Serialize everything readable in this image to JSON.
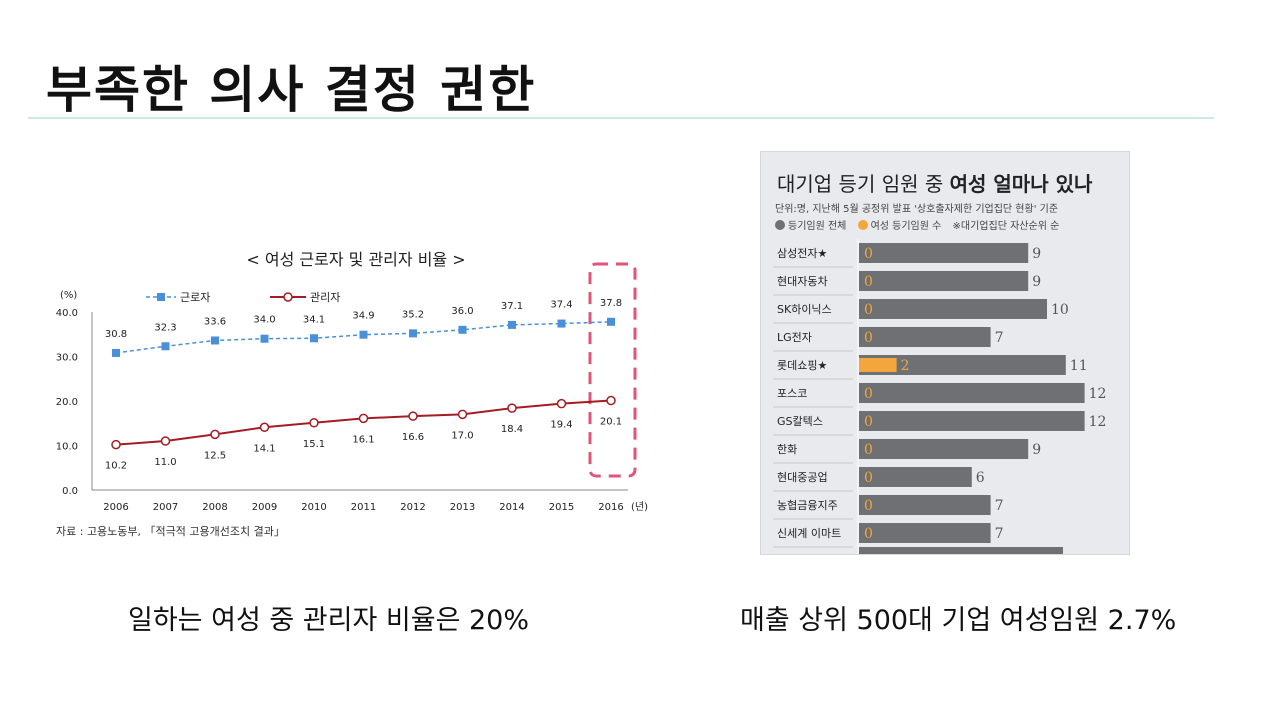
{
  "slide": {
    "title": "부족한 의사 결정 권한",
    "caption_left": "일하는 여성 중 관리자 비율은 20%",
    "caption_right": "매출 상위 500대 기업 여성임원 2.7%"
  },
  "chart_data": [
    {
      "type": "line",
      "title": "< 여성 근로자 및 관리자 비율 >",
      "ylabel": "(%)",
      "xlabel": "(년)",
      "x": [
        "2006",
        "2007",
        "2008",
        "2009",
        "2010",
        "2011",
        "2012",
        "2013",
        "2014",
        "2015",
        "2016"
      ],
      "ylim": [
        0,
        40
      ],
      "yticks": [
        "0.0",
        "10.0",
        "20.0",
        "30.0",
        "40.0"
      ],
      "legend_position": "top-left",
      "series": [
        {
          "name": "근로자",
          "color": "#4a90d9",
          "values": [
            30.8,
            32.3,
            33.6,
            34.0,
            34.1,
            34.9,
            35.2,
            36.0,
            37.1,
            37.4,
            37.8
          ],
          "labels": [
            "30.8",
            "32.3",
            "33.6",
            "34.0",
            "34.1",
            "34.9",
            "35.2",
            "36.0",
            "37.1",
            "37.4",
            "37.8"
          ]
        },
        {
          "name": "관리자",
          "color": "#a51c24",
          "values": [
            10.2,
            11.0,
            12.5,
            14.1,
            15.1,
            16.1,
            16.6,
            17.0,
            18.4,
            19.4,
            20.1
          ],
          "labels": [
            "10.2",
            "11.0",
            "12.5",
            "14.1",
            "15.1",
            "16.1",
            "16.6",
            "17.0",
            "18.4",
            "19.4",
            "20.1"
          ]
        }
      ],
      "highlight_category": "2016",
      "highlight_color": "#e0557a",
      "source": "자료 : 고용노동부, 「적극적 고용개선조치 결과」"
    },
    {
      "type": "bar",
      "title_plain": "대기업 등기 임원 중 ",
      "title_bold": "여성 얼마나 있나",
      "subtitle": "단위:명, 지난해 5월 공정위 발표 '상호출자제한 기업집단 현황' 기준",
      "legend": [
        {
          "name": "등기임원 전체",
          "color": "#6e7074"
        },
        {
          "name": "여성 등기임원 수",
          "color": "#f3a63b"
        },
        {
          "name": "※대기업집단 자산순위 순",
          "color": ""
        }
      ],
      "categories": [
        "삼성전자★",
        "현대자동차",
        "SK하이닉스",
        "LG전자",
        "롯데쇼핑★",
        "포스코",
        "GS칼텍스",
        "한화",
        "현대중공업",
        "농협금융지주",
        "신세계 이마트"
      ],
      "total": [
        9,
        9,
        10,
        7,
        11,
        12,
        12,
        9,
        6,
        7,
        7
      ],
      "female": [
        0,
        0,
        0,
        0,
        2,
        0,
        0,
        0,
        0,
        0,
        0
      ],
      "xlim": [
        0,
        12
      ]
    }
  ]
}
